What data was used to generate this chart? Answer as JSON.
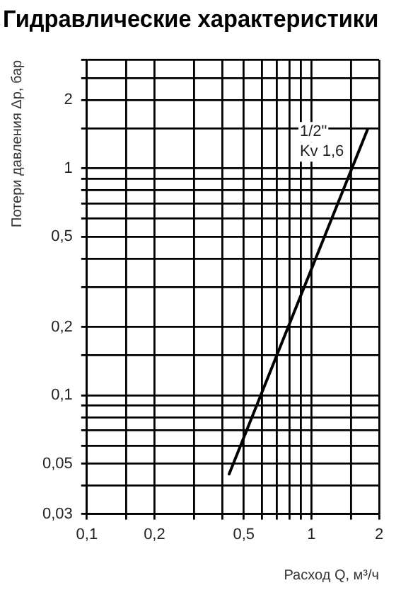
{
  "chart_data": {
    "type": "line",
    "title": "Гидравлические характеристики",
    "xlabel": "Расход Q, м³/ч",
    "ylabel": "Потери давления Δp, бар",
    "log": "xy",
    "grid": true,
    "legend": false,
    "marker": "none",
    "line_style": "solid",
    "xlim": [
      0.1,
      2
    ],
    "xticks": [
      {
        "value": 0.1,
        "label": "0,1"
      },
      {
        "value": 0.15,
        "label": null
      },
      {
        "value": 0.2,
        "label": "0,2"
      },
      {
        "value": 0.3,
        "label": null
      },
      {
        "value": 0.4,
        "label": null
      },
      {
        "value": 0.5,
        "label": "0,5"
      },
      {
        "value": 0.6,
        "label": null
      },
      {
        "value": 0.7,
        "label": null
      },
      {
        "value": 0.8,
        "label": null
      },
      {
        "value": 0.9,
        "label": null
      },
      1,
      {
        "value": 1.5,
        "label": null
      },
      2
    ],
    "ylim": [
      0.03,
      3
    ],
    "yticks": [
      {
        "value": 0.03,
        "label": "0,03"
      },
      {
        "value": 0.04,
        "label": null
      },
      {
        "value": 0.05,
        "label": "0,05"
      },
      {
        "value": 0.06,
        "label": null
      },
      {
        "value": 0.07,
        "label": null
      },
      {
        "value": 0.08,
        "label": null
      },
      {
        "value": 0.09,
        "label": null
      },
      {
        "value": 0.1,
        "label": "0,1"
      },
      {
        "value": 0.15,
        "label": null
      },
      {
        "value": 0.2,
        "label": "0,2"
      },
      {
        "value": 0.3,
        "label": null
      },
      {
        "value": 0.4,
        "label": null
      },
      {
        "value": 0.5,
        "label": "0,5"
      },
      {
        "value": 0.6,
        "label": null
      },
      {
        "value": 0.7,
        "label": null
      },
      {
        "value": 0.8,
        "label": null
      },
      {
        "value": 0.9,
        "label": null
      },
      1,
      {
        "value": 1.5,
        "label": null
      },
      2,
      {
        "value": 2.5,
        "label": null
      },
      {
        "value": 3,
        "label": null
      }
    ],
    "series": [
      {
        "color": "#000000",
        "x": [
          0.43,
          1.78
        ],
        "values": [
          0.045,
          1.49
        ]
      }
    ],
    "annotations": [
      "1/2\"",
      "Kv 1,6"
    ]
  }
}
